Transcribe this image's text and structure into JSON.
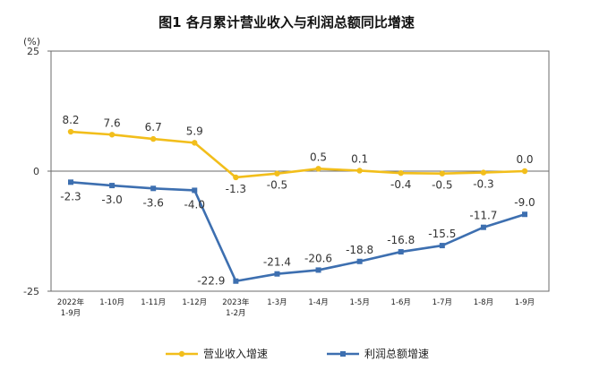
{
  "chart_data": {
    "type": "line",
    "title": "图1  各月累计营业收入与利润总额同比增速",
    "unit": "(%)",
    "ylim": [
      -25,
      25
    ],
    "yticks": [
      "25",
      "0",
      "-25"
    ],
    "categories": [
      [
        "2022年",
        "1-9月"
      ],
      [
        "1-10月"
      ],
      [
        "1-11月"
      ],
      [
        "1-12月"
      ],
      [
        "2023年",
        "1-2月"
      ],
      [
        "1-3月"
      ],
      [
        "1-4月"
      ],
      [
        "1-5月"
      ],
      [
        "1-6月"
      ],
      [
        "1-7月"
      ],
      [
        "1-8月"
      ],
      [
        "1-9月"
      ]
    ],
    "grid": false,
    "legend_position": "bottom",
    "series": [
      {
        "name": "营业收入增速",
        "color": "#f2be1b",
        "marker": "circle",
        "values": [
          8.2,
          7.6,
          6.7,
          5.9,
          -1.3,
          -0.5,
          0.5,
          0.1,
          -0.4,
          -0.5,
          -0.3,
          0.0
        ],
        "labels": [
          "8.2",
          "7.6",
          "6.7",
          "5.9",
          "-1.3",
          "-0.5",
          "0.5",
          "0.1",
          "-0.4",
          "-0.5",
          "-0.3",
          "0.0"
        ]
      },
      {
        "name": "利润总额增速",
        "color": "#3d6fb0",
        "marker": "square",
        "values": [
          -2.3,
          -3.0,
          -3.6,
          -4.0,
          -22.9,
          -21.4,
          -20.6,
          -18.8,
          -16.8,
          -15.5,
          -11.7,
          -9.0
        ],
        "labels": [
          "-2.3",
          "-3.0",
          "-3.6",
          "-4.0",
          "-22.9",
          "-21.4",
          "-20.6",
          "-18.8",
          "-16.8",
          "-15.5",
          "-11.7",
          "-9.0"
        ]
      }
    ]
  }
}
